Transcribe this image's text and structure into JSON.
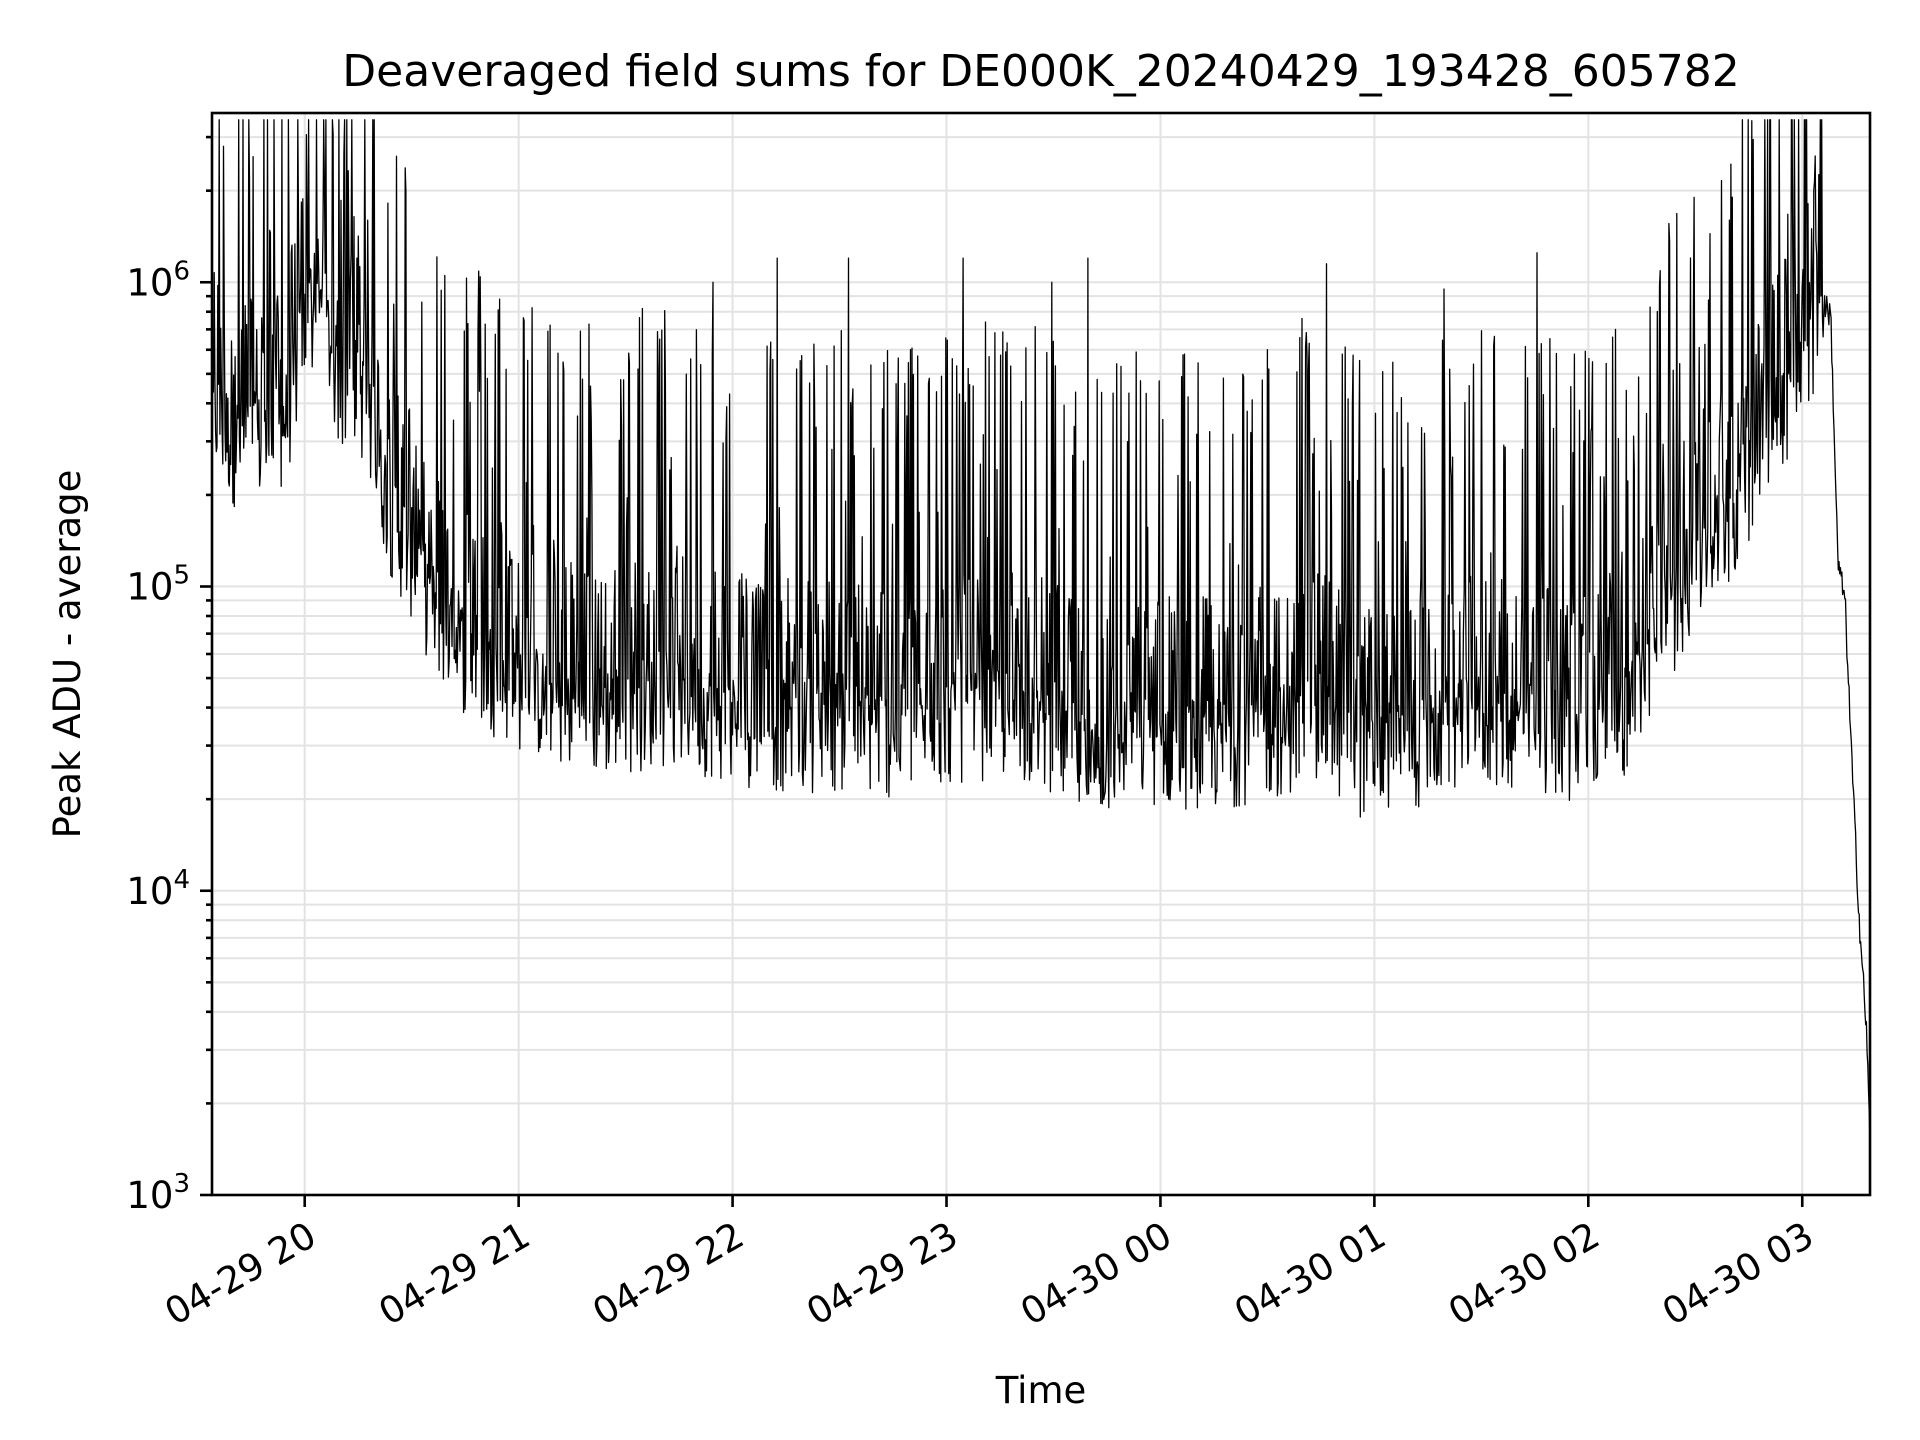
{
  "chart_data": {
    "type": "line",
    "title": "Deaveraged field sums for DE000K_20240429_193428_605782",
    "xlabel": "Time",
    "ylabel": "Peak ADU - average",
    "yscale": "log",
    "ylim": [
      1000,
      3600000
    ],
    "xlim": [
      "2024-04-29 19:34",
      "2024-04-30 03:19"
    ],
    "grid": true,
    "x_ticks": [
      {
        "t": "2024-04-29 20:00",
        "label": "04-29 20"
      },
      {
        "t": "2024-04-29 21:00",
        "label": "04-29 21"
      },
      {
        "t": "2024-04-29 22:00",
        "label": "04-29 22"
      },
      {
        "t": "2024-04-29 23:00",
        "label": "04-29 23"
      },
      {
        "t": "2024-04-30 00:00",
        "label": "04-30 00"
      },
      {
        "t": "2024-04-30 01:00",
        "label": "04-30 01"
      },
      {
        "t": "2024-04-30 02:00",
        "label": "04-30 02"
      },
      {
        "t": "2024-04-30 03:00",
        "label": "04-30 03"
      }
    ],
    "y_ticks": [
      {
        "value": 1000,
        "base": "10",
        "exp": "3"
      },
      {
        "value": 10000,
        "base": "10",
        "exp": "4"
      },
      {
        "value": 100000,
        "base": "10",
        "exp": "5"
      },
      {
        "value": 1000000,
        "base": "10",
        "exp": "6"
      }
    ],
    "series_color": "#000000",
    "series": [
      {
        "x": [
          "2024-04-29 19:34",
          "2024-04-29 19:40",
          "2024-04-29 19:45",
          "2024-04-29 19:50",
          "2024-04-29 19:55",
          "2024-04-29 20:00",
          "2024-04-29 20:05",
          "2024-04-29 20:10",
          "2024-04-29 20:15",
          "2024-04-29 20:20",
          "2024-04-29 20:25",
          "2024-04-29 20:30",
          "2024-04-29 20:35",
          "2024-04-29 20:40",
          "2024-04-29 20:45",
          "2024-04-29 20:50",
          "2024-04-29 20:55",
          "2024-04-29 21:00",
          "2024-04-29 21:10",
          "2024-04-29 21:20",
          "2024-04-29 21:30",
          "2024-04-29 21:40",
          "2024-04-29 21:50",
          "2024-04-29 22:00",
          "2024-04-29 22:15",
          "2024-04-29 22:30",
          "2024-04-29 22:45",
          "2024-04-29 23:00",
          "2024-04-29 23:15",
          "2024-04-29 23:30",
          "2024-04-29 23:40",
          "2024-04-29 23:50",
          "2024-04-30 00:00",
          "2024-04-30 00:15",
          "2024-04-30 00:30",
          "2024-04-30 00:45",
          "2024-04-30 00:55",
          "2024-04-30 01:00",
          "2024-04-30 01:10",
          "2024-04-30 01:20",
          "2024-04-30 01:30",
          "2024-04-30 01:40",
          "2024-04-30 01:50",
          "2024-04-30 02:00",
          "2024-04-30 02:10",
          "2024-04-30 02:20",
          "2024-04-30 02:30",
          "2024-04-30 02:40",
          "2024-04-30 02:50",
          "2024-04-30 03:00",
          "2024-04-30 03:05",
          "2024-04-30 03:08",
          "2024-04-30 03:10",
          "2024-04-30 03:12",
          "2024-04-30 03:14",
          "2024-04-30 03:16",
          "2024-04-30 03:18",
          "2024-04-30 03:19"
        ],
        "y": [
          420000,
          330000,
          340000,
          320000,
          400000,
          780000,
          900000,
          480000,
          520000,
          300000,
          180000,
          140000,
          100000,
          80000,
          68000,
          62000,
          56000,
          52000,
          46000,
          42000,
          44000,
          46000,
          44000,
          40000,
          38000,
          38000,
          36000,
          40000,
          42000,
          38000,
          28000,
          35000,
          34000,
          33000,
          36000,
          40000,
          32000,
          30000,
          32000,
          36000,
          40000,
          38000,
          36000,
          36000,
          42000,
          75000,
          130000,
          180000,
          360000,
          560000,
          900000,
          780000,
          120000,
          90000,
          25000,
          8000,
          3500,
          1500
        ],
        "peaks_x": [
          "2024-04-29 20:02",
          "2024-04-29 20:06",
          "2024-04-29 20:15",
          "2024-04-29 20:18",
          "2024-04-29 20:55",
          "2024-04-29 21:35",
          "2024-04-29 21:55",
          "2024-04-29 22:13",
          "2024-04-29 22:33",
          "2024-04-29 23:05",
          "2024-04-29 23:30",
          "2024-04-29 23:40",
          "2024-04-30 00:40",
          "2024-04-30 00:47",
          "2024-04-30 01:20",
          "2024-04-30 01:46",
          "2024-04-30 02:08",
          "2024-04-30 02:30",
          "2024-04-30 02:40",
          "2024-04-30 02:50",
          "2024-04-30 03:04"
        ],
        "peaks_y": [
          1100000,
          2000000,
          1200000,
          1600000,
          880000,
          820000,
          1000000,
          1200000,
          1200000,
          1200000,
          1000000,
          1200000,
          760000,
          1150000,
          950000,
          1250000,
          700000,
          1900000,
          1600000,
          1050000,
          2600000
        ]
      }
    ]
  }
}
